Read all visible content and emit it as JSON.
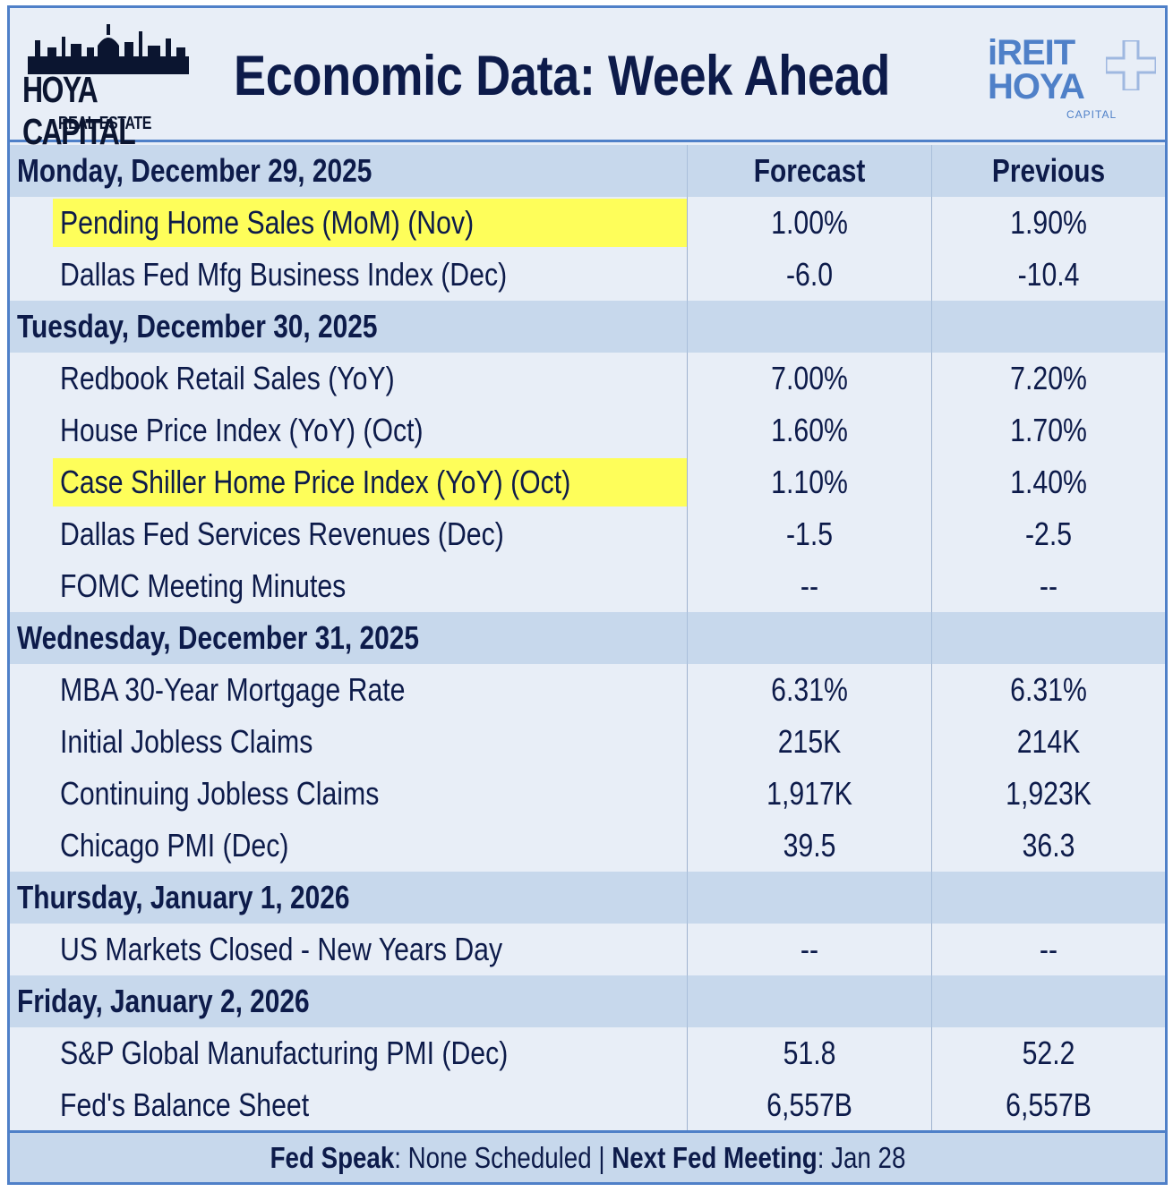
{
  "header": {
    "logo_left_brand": "HOYA CAPITAL",
    "logo_left_sub": "REAL ESTATE",
    "title": "Economic Data: Week Ahead",
    "logo_right_line1": "iREIT",
    "logo_right_line2": "HOYA",
    "logo_right_line3": "CAPITAL"
  },
  "columns": {
    "forecast": "Forecast",
    "previous": "Previous"
  },
  "days": [
    {
      "label": "Monday, December 29, 2025",
      "items": [
        {
          "label": "Pending Home Sales (MoM) (Nov)",
          "forecast": "1.00%",
          "previous": "1.90%",
          "highlight": true
        },
        {
          "label": "Dallas Fed Mfg Business Index (Dec)",
          "forecast": "-6.0",
          "previous": "-10.4",
          "highlight": false
        }
      ]
    },
    {
      "label": "Tuesday, December 30, 2025",
      "items": [
        {
          "label": "Redbook Retail Sales (YoY)",
          "forecast": "7.00%",
          "previous": "7.20%",
          "highlight": false
        },
        {
          "label": "House Price Index (YoY) (Oct)",
          "forecast": "1.60%",
          "previous": "1.70%",
          "highlight": false
        },
        {
          "label": "Case Shiller Home Price Index (YoY) (Oct)",
          "forecast": "1.10%",
          "previous": "1.40%",
          "highlight": true
        },
        {
          "label": "Dallas Fed Services Revenues (Dec)",
          "forecast": "-1.5",
          "previous": "-2.5",
          "highlight": false
        },
        {
          "label": "FOMC Meeting Minutes",
          "forecast": "--",
          "previous": "--",
          "highlight": false
        }
      ]
    },
    {
      "label": "Wednesday, December 31, 2025",
      "items": [
        {
          "label": "MBA 30-Year Mortgage Rate",
          "forecast": "6.31%",
          "previous": "6.31%",
          "highlight": false
        },
        {
          "label": "Initial Jobless Claims",
          "forecast": "215K",
          "previous": "214K",
          "highlight": false
        },
        {
          "label": "Continuing Jobless Claims",
          "forecast": "1,917K",
          "previous": "1,923K",
          "highlight": false
        },
        {
          "label": "Chicago PMI (Dec)",
          "forecast": "39.5",
          "previous": "36.3",
          "highlight": false
        }
      ]
    },
    {
      "label": "Thursday, January 1, 2026",
      "items": [
        {
          "label": "US Markets Closed - New Years Day",
          "forecast": "--",
          "previous": "--",
          "highlight": false
        }
      ]
    },
    {
      "label": "Friday, January 2, 2026",
      "items": [
        {
          "label": "S&P Global Manufacturing PMI (Dec)",
          "forecast": "51.8",
          "previous": "52.2",
          "highlight": false
        },
        {
          "label": "Fed's Balance Sheet",
          "forecast": "6,557B",
          "previous": "6,557B",
          "highlight": false
        }
      ]
    }
  ],
  "footer": {
    "fed_speak_label": "Fed Speak",
    "fed_speak_value": ": None Scheduled | ",
    "next_meeting_label": "Next Fed Meeting",
    "next_meeting_value": ": Jan 28"
  },
  "colors": {
    "border": "#4f80c8",
    "day_row_bg": "#c7d8ec",
    "item_row_bg": "#e8eef7",
    "highlight": "#fefe5a",
    "text": "#0d1b4a"
  }
}
